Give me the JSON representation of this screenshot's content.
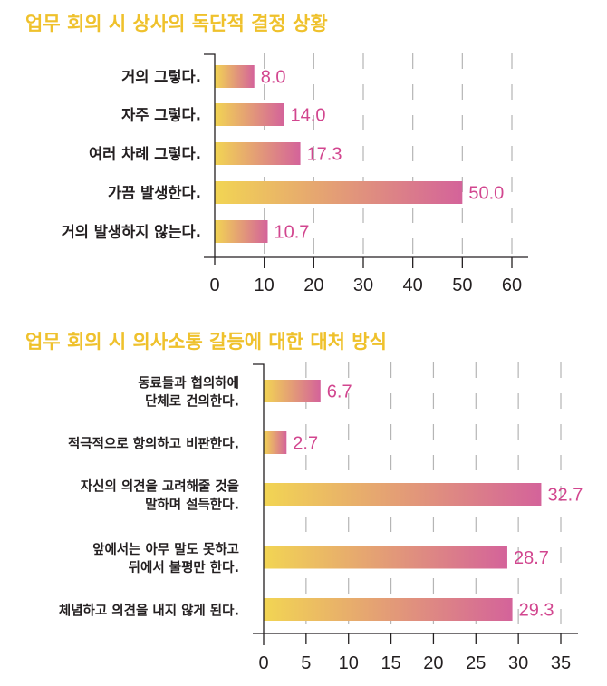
{
  "colors": {
    "title": "#efc12c",
    "bar_start": "#f2d553",
    "bar_end": "#d4639a",
    "value_label": "#d2468f",
    "text": "#231f20",
    "grid": "#b5b5b5"
  },
  "chart_data": [
    {
      "type": "bar",
      "orientation": "horizontal",
      "title": "업무 회의 시 상사의 독단적 결정 상황",
      "categories": [
        [
          "거의 그렇다."
        ],
        [
          "자주 그렇다."
        ],
        [
          "여러 차례 그렇다."
        ],
        [
          "가끔 발생한다."
        ],
        [
          "거의 발생하지 않는다."
        ]
      ],
      "values": [
        8.0,
        14.0,
        17.3,
        50.0,
        10.7
      ],
      "value_labels": [
        "8.0",
        "14.0",
        "17.3",
        "50.0",
        "10.7"
      ],
      "xlim": [
        0,
        60
      ],
      "xticks": [
        0,
        10,
        20,
        30,
        40,
        50,
        60
      ],
      "xtick_labels": [
        "0",
        "10",
        "20",
        "30",
        "40",
        "50",
        "60"
      ],
      "grid": true,
      "grid_style": "dashed",
      "xlabel": "",
      "ylabel": ""
    },
    {
      "type": "bar",
      "orientation": "horizontal",
      "title": "업무 회의 시 의사소통 갈등에 대한 대처 방식",
      "categories": [
        [
          "동료들과 협의하에",
          "단체로 건의한다."
        ],
        [
          "적극적으로 항의하고 비판한다."
        ],
        [
          "자신의 의견을 고려해줄 것을",
          "말하며 설득한다."
        ],
        [
          "앞에서는 아무 말도 못하고",
          "뒤에서 불평만 한다."
        ],
        [
          "체념하고 의견을 내지 않게 된다."
        ]
      ],
      "values": [
        6.7,
        2.7,
        32.7,
        28.7,
        29.3
      ],
      "value_labels": [
        "6.7",
        "2.7",
        "32.7",
        "28.7",
        "29.3"
      ],
      "xlim": [
        0,
        35
      ],
      "xticks": [
        0,
        5,
        10,
        15,
        20,
        25,
        30,
        35
      ],
      "xtick_labels": [
        "0",
        "5",
        "10",
        "15",
        "20",
        "25",
        "30",
        "35"
      ],
      "grid": true,
      "grid_style": "dashed",
      "xlabel": "",
      "ylabel": ""
    }
  ]
}
